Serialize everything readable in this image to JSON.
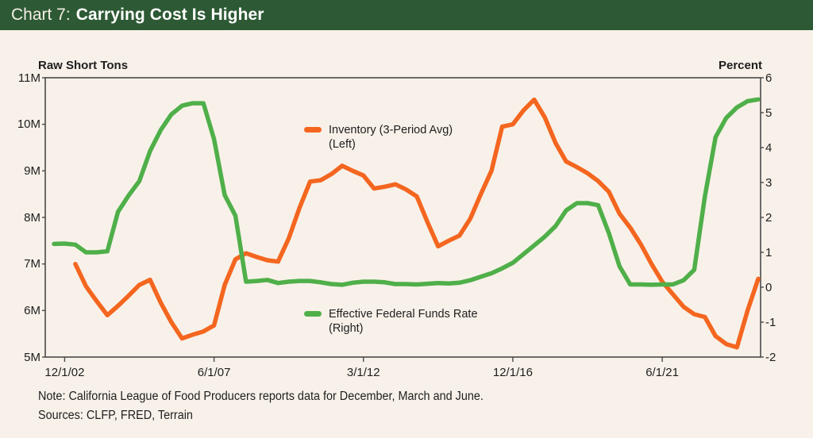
{
  "header": {
    "prefix": "Chart 7:",
    "title": "Carrying Cost Is Higher"
  },
  "axis_titles": {
    "left": "Raw Short Tons",
    "right": "Percent"
  },
  "legend": {
    "inventory": {
      "line1": "Inventory (3-Period Avg)",
      "line2": "(Left)"
    },
    "effr": {
      "line1": "Effective Federal Funds Rate",
      "line2": "(Right)"
    }
  },
  "footer": {
    "note": "Note: California League of Food Producers reports data for December, March and June.",
    "sources": "Sources: CLFP, FRED, Terrain"
  },
  "colors": {
    "header_bg": "#2d5a34",
    "page_bg": "#f8f1e9",
    "inventory_line": "#f4661f",
    "effr_line": "#4faf49",
    "axis": "#4a4a4a",
    "text": "#1e1e1e"
  },
  "chart_data": {
    "type": "line",
    "title": "Chart 7: Carrying Cost Is Higher",
    "grid": false,
    "legend_position": "inside-plot",
    "left_axis": {
      "title": "Raw Short Tons",
      "min": 5,
      "max": 11,
      "ticks": [
        {
          "label": "11M",
          "value": 11
        },
        {
          "label": "10M",
          "value": 10
        },
        {
          "label": "9M",
          "value": 9
        },
        {
          "label": "8M",
          "value": 8
        },
        {
          "label": "7M",
          "value": 7
        },
        {
          "label": "6M",
          "value": 6
        },
        {
          "label": "5M",
          "value": 5
        }
      ]
    },
    "right_axis": {
      "title": "Percent",
      "min": -2,
      "max": 6,
      "ticks": [
        {
          "label": "6",
          "value": 6
        },
        {
          "label": "5",
          "value": 5
        },
        {
          "label": "4",
          "value": 4
        },
        {
          "label": "3",
          "value": 3
        },
        {
          "label": "2",
          "value": 2
        },
        {
          "label": "1",
          "value": 1
        },
        {
          "label": "0",
          "value": 0
        },
        {
          "label": "-1",
          "value": -1
        },
        {
          "label": "-2",
          "value": -2
        }
      ]
    },
    "x_axis": {
      "description": "Quarterly-style points for December, March and June of each year, Dec 2002 through Jun 2024",
      "ticks": [
        {
          "label": "12/1/02",
          "index": 1
        },
        {
          "label": "6/1/07",
          "index": 15
        },
        {
          "label": "3/1/12",
          "index": 29
        },
        {
          "label": "12/1/16",
          "index": 43
        },
        {
          "label": "6/1/21",
          "index": 57
        }
      ]
    },
    "series": [
      {
        "id": "inventory",
        "name": "Inventory (3-Period Avg) (Left)",
        "axis": "left",
        "unit": "million raw short tons",
        "color": "#f4661f",
        "start_index": 2,
        "values": [
          7.0,
          6.52,
          6.2,
          5.9,
          6.1,
          6.32,
          6.55,
          6.66,
          6.17,
          5.75,
          5.4,
          5.48,
          5.55,
          5.68,
          6.55,
          7.1,
          7.23,
          7.15,
          7.08,
          7.05,
          7.55,
          8.2,
          8.77,
          8.8,
          8.93,
          9.11,
          9.0,
          8.9,
          8.62,
          8.66,
          8.71,
          8.6,
          8.45,
          7.9,
          7.38,
          7.5,
          7.61,
          7.97,
          8.5,
          9.0,
          9.95,
          10.0,
          10.3,
          10.53,
          10.15,
          9.6,
          9.2,
          9.08,
          8.95,
          8.78,
          8.55,
          8.08,
          7.78,
          7.42,
          7.0,
          6.62,
          6.35,
          6.08,
          5.92,
          5.86,
          5.45,
          5.28,
          5.21,
          6.0,
          6.68
        ]
      },
      {
        "id": "effr",
        "name": "Effective Federal Funds Rate (Right)",
        "axis": "right",
        "unit": "percent",
        "color": "#4faf49",
        "start_index": 0,
        "values": [
          1.24,
          1.25,
          1.22,
          1.0,
          1.0,
          1.03,
          2.16,
          2.63,
          3.04,
          3.9,
          4.5,
          4.95,
          5.2,
          5.27,
          5.27,
          4.24,
          2.64,
          2.05,
          0.16,
          0.18,
          0.21,
          0.12,
          0.16,
          0.18,
          0.18,
          0.14,
          0.09,
          0.07,
          0.13,
          0.16,
          0.16,
          0.14,
          0.09,
          0.09,
          0.08,
          0.1,
          0.12,
          0.11,
          0.13,
          0.2,
          0.3,
          0.4,
          0.54,
          0.7,
          0.95,
          1.2,
          1.45,
          1.75,
          2.2,
          2.41,
          2.41,
          2.35,
          1.55,
          0.6,
          0.08,
          0.08,
          0.07,
          0.08,
          0.08,
          0.2,
          0.5,
          2.6,
          4.3,
          4.85,
          5.15,
          5.33,
          5.38
        ]
      }
    ]
  }
}
